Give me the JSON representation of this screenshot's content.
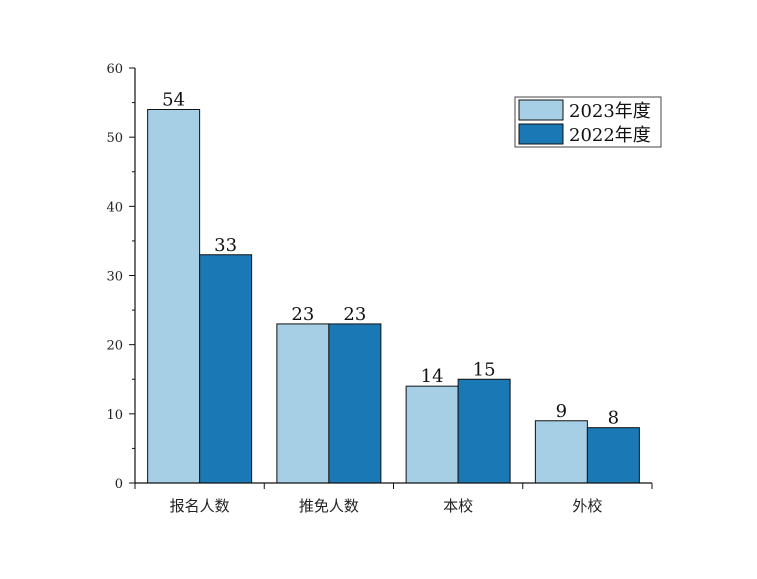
{
  "chart_data": {
    "type": "bar",
    "title": "",
    "xlabel": "",
    "ylabel": "",
    "categories": [
      "报名人数",
      "推免人数",
      "本校",
      "外校"
    ],
    "series": [
      {
        "name": "2023年度",
        "values": [
          54,
          23,
          14,
          9
        ],
        "color": "#a6cee4"
      },
      {
        "name": "2022年度",
        "values": [
          33,
          23,
          15,
          8
        ],
        "color": "#1a78b5"
      }
    ],
    "ylim": [
      0,
      60
    ],
    "yticks": [
      0,
      10,
      20,
      30,
      40,
      50,
      60
    ],
    "grid": false,
    "legend_position": "top-right",
    "data_labels": true
  }
}
